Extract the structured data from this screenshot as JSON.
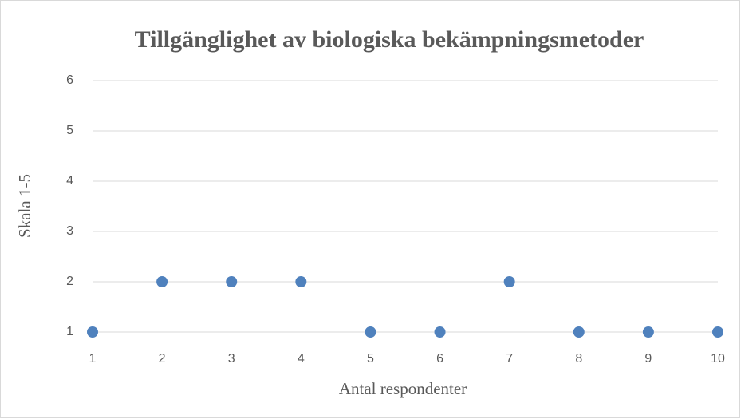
{
  "chart_data": {
    "type": "scatter",
    "title": "Tillgänglighet av biologiska bekämpningsmetoder",
    "x_label": "Antal respondenter",
    "y_label": "Skala 1-5",
    "x": [
      1,
      2,
      3,
      4,
      5,
      6,
      7,
      8,
      9,
      10
    ],
    "values": [
      1,
      2,
      2,
      2,
      1,
      1,
      2,
      1,
      1,
      1
    ],
    "color": "#4f81bd",
    "xlim": [
      1,
      10
    ],
    "xticks": [
      1,
      2,
      3,
      4,
      5,
      6,
      7,
      8,
      9,
      10
    ],
    "ylim": [
      1,
      6
    ],
    "yticks": [
      1,
      2,
      3,
      4,
      5,
      6
    ],
    "grid": true
  }
}
